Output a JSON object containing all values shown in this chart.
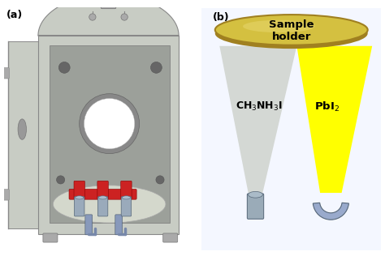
{
  "fig_width": 4.74,
  "fig_height": 3.16,
  "dpi": 100,
  "panel_a_label": "(a)",
  "panel_b_label": "(b)",
  "sample_holder_label": "Sample\nholder",
  "ch3nh3i_label": "CH$_3$NH$_3$I",
  "pbi2_label": "PbI$_2$",
  "chamber_face": "#c8ccc4",
  "chamber_inner": "#9ca09a",
  "chamber_side": "#b8bcb4",
  "chamber_edge": "#888888",
  "floor_color": "#d8ddd0",
  "hole_color": "#ffffff",
  "hole_ring": "#aaaaaa",
  "red_parts": "#cc2222",
  "cylinder_color": "#9aaabb",
  "cylinder_edge": "#556677",
  "tube_color": "#8899bb",
  "cone_gray": "#d0d4d0",
  "cone_yellow": "#ffff00",
  "sample_holder_gold_light": "#d4c040",
  "sample_holder_gold_dark": "#a08020",
  "box_border": "#1a3aaa",
  "box_fill": "#f4f7ff",
  "label_fontsize": 9,
  "text_fontsize": 8.5
}
